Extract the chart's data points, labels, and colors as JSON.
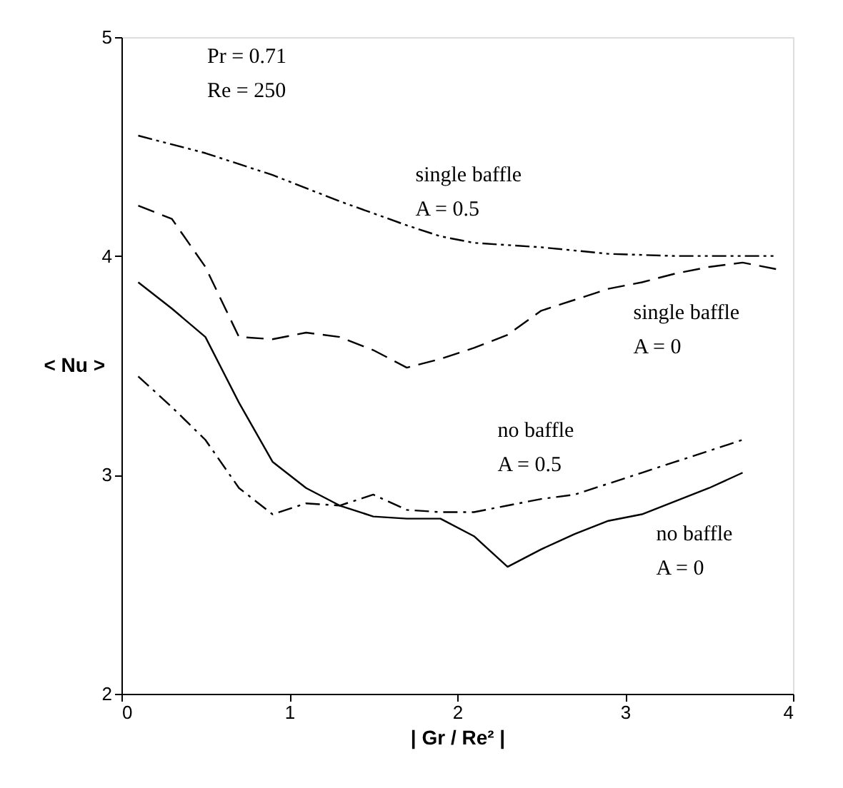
{
  "chart_data": {
    "type": "line",
    "xlabel": "| Gr / Re² |",
    "ylabel": "< Nu >",
    "xlim": [
      0,
      4
    ],
    "xticks": [
      0,
      1,
      2,
      3,
      4
    ],
    "ylim": [
      2,
      5
    ],
    "yticks": [
      2,
      3,
      4,
      5
    ],
    "grid": false,
    "legend": false,
    "marker": "none",
    "series": [
      {
        "name": "single baffle\nA = 0.5",
        "color": "#000000",
        "line_style": "dashdotdot",
        "x": [
          0.1,
          0.5,
          0.9,
          1.3,
          1.7,
          1.9,
          2.1,
          2.5,
          2.9,
          3.3,
          3.9
        ],
        "values": [
          4.55,
          4.47,
          4.37,
          4.25,
          4.14,
          4.09,
          4.06,
          4.04,
          4.01,
          4.0,
          4.0
        ]
      },
      {
        "name": "single baffle\nA = 0",
        "color": "#000000",
        "line_style": "dashed",
        "x": [
          0.1,
          0.3,
          0.5,
          0.7,
          0.9,
          1.1,
          1.3,
          1.5,
          1.7,
          1.9,
          2.1,
          2.3,
          2.5,
          2.7,
          2.9,
          3.1,
          3.3,
          3.5,
          3.7,
          3.9
        ],
        "values": [
          4.23,
          4.17,
          3.95,
          3.63,
          3.62,
          3.65,
          3.63,
          3.57,
          3.49,
          3.53,
          3.58,
          3.64,
          3.75,
          3.8,
          3.85,
          3.88,
          3.92,
          3.95,
          3.97,
          3.94
        ]
      },
      {
        "name": "no baffle\nA = 0.5",
        "color": "#000000",
        "line_style": "dashdot",
        "x": [
          0.1,
          0.3,
          0.5,
          0.7,
          0.9,
          1.1,
          1.3,
          1.5,
          1.7,
          1.9,
          2.1,
          2.3,
          2.5,
          2.7,
          2.9,
          3.1,
          3.3,
          3.5,
          3.7
        ],
        "values": [
          3.45,
          3.31,
          3.16,
          2.94,
          2.82,
          2.87,
          2.86,
          2.91,
          2.84,
          2.83,
          2.83,
          2.86,
          2.89,
          2.91,
          2.96,
          3.01,
          3.06,
          3.11,
          3.16
        ]
      },
      {
        "name": "no baffle\nA = 0",
        "color": "#000000",
        "line_style": "solid",
        "x": [
          0.1,
          0.3,
          0.5,
          0.7,
          0.9,
          1.1,
          1.3,
          1.5,
          1.7,
          1.9,
          2.1,
          2.3,
          2.5,
          2.7,
          2.9,
          3.1,
          3.3,
          3.5,
          3.7
        ],
        "values": [
          3.88,
          3.76,
          3.63,
          3.33,
          3.06,
          2.94,
          2.86,
          2.81,
          2.8,
          2.8,
          2.72,
          2.58,
          2.66,
          2.73,
          2.79,
          2.82,
          2.88,
          2.94,
          3.01
        ]
      }
    ],
    "annotations": [
      "Pr = 0.71",
      "Re = 250"
    ]
  }
}
